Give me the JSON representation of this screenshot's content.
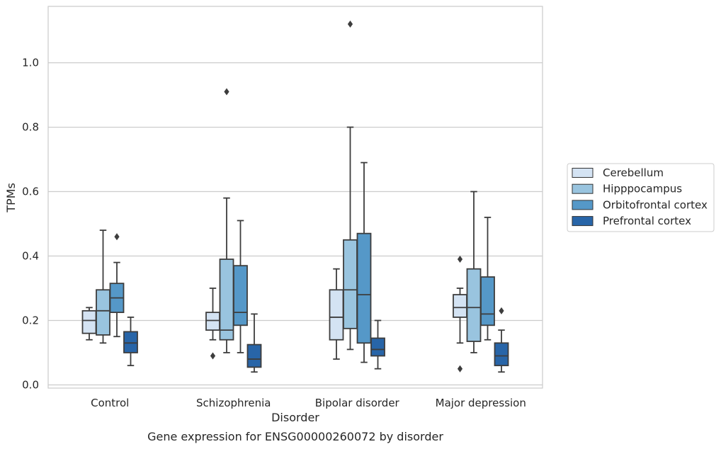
{
  "chart_data": {
    "type": "box",
    "caption": "Gene expression for ENSG00000260072 by disorder",
    "xlabel": "Disorder",
    "ylabel": "TPMs",
    "ylim": [
      -0.01,
      1.175
    ],
    "yticks": [
      0.0,
      0.2,
      0.4,
      0.6,
      0.8,
      1.0
    ],
    "ytick_labels": [
      "0.0",
      "0.2",
      "0.4",
      "0.6",
      "0.8",
      "1.0"
    ],
    "grid": "horizontal",
    "legend_position": "right",
    "categories": [
      "Control",
      "Schizophrenia",
      "Bipolar disorder",
      "Major depression"
    ],
    "series": [
      {
        "name": "Cerebellum",
        "color": "#d4e3f3",
        "boxes": [
          {
            "whislo": 0.14,
            "q1": 0.16,
            "med": 0.2,
            "q3": 0.23,
            "whishi": 0.24,
            "fliers": []
          },
          {
            "whislo": 0.14,
            "q1": 0.17,
            "med": 0.2,
            "q3": 0.225,
            "whishi": 0.3,
            "fliers": [
              0.09
            ]
          },
          {
            "whislo": 0.08,
            "q1": 0.14,
            "med": 0.21,
            "q3": 0.295,
            "whishi": 0.36,
            "fliers": []
          },
          {
            "whislo": 0.13,
            "q1": 0.21,
            "med": 0.24,
            "q3": 0.28,
            "whishi": 0.3,
            "fliers": [
              0.39,
              0.05
            ]
          }
        ]
      },
      {
        "name": "Hipppocampus",
        "color": "#99c4df",
        "boxes": [
          {
            "whislo": 0.13,
            "q1": 0.155,
            "med": 0.23,
            "q3": 0.295,
            "whishi": 0.48,
            "fliers": []
          },
          {
            "whislo": 0.1,
            "q1": 0.14,
            "med": 0.17,
            "q3": 0.39,
            "whishi": 0.58,
            "fliers": [
              0.91
            ]
          },
          {
            "whislo": 0.11,
            "q1": 0.175,
            "med": 0.295,
            "q3": 0.45,
            "whishi": 0.8,
            "fliers": [
              1.12
            ]
          },
          {
            "whislo": 0.1,
            "q1": 0.135,
            "med": 0.24,
            "q3": 0.36,
            "whishi": 0.6,
            "fliers": []
          }
        ]
      },
      {
        "name": "Orbitofrontal cortex",
        "color": "#5598c8",
        "boxes": [
          {
            "whislo": 0.15,
            "q1": 0.225,
            "med": 0.27,
            "q3": 0.315,
            "whishi": 0.38,
            "fliers": [
              0.46
            ]
          },
          {
            "whislo": 0.1,
            "q1": 0.185,
            "med": 0.225,
            "q3": 0.37,
            "whishi": 0.51,
            "fliers": []
          },
          {
            "whislo": 0.07,
            "q1": 0.13,
            "med": 0.28,
            "q3": 0.47,
            "whishi": 0.69,
            "fliers": []
          },
          {
            "whislo": 0.14,
            "q1": 0.185,
            "med": 0.22,
            "q3": 0.335,
            "whishi": 0.52,
            "fliers": []
          }
        ]
      },
      {
        "name": "Prefrontal cortex",
        "color": "#2865a8",
        "boxes": [
          {
            "whislo": 0.06,
            "q1": 0.1,
            "med": 0.13,
            "q3": 0.165,
            "whishi": 0.21,
            "fliers": []
          },
          {
            "whislo": 0.04,
            "q1": 0.055,
            "med": 0.08,
            "q3": 0.125,
            "whishi": 0.22,
            "fliers": []
          },
          {
            "whislo": 0.05,
            "q1": 0.09,
            "med": 0.11,
            "q3": 0.145,
            "whishi": 0.2,
            "fliers": []
          },
          {
            "whislo": 0.04,
            "q1": 0.06,
            "med": 0.09,
            "q3": 0.13,
            "whishi": 0.17,
            "fliers": [
              0.23
            ]
          }
        ]
      }
    ]
  }
}
